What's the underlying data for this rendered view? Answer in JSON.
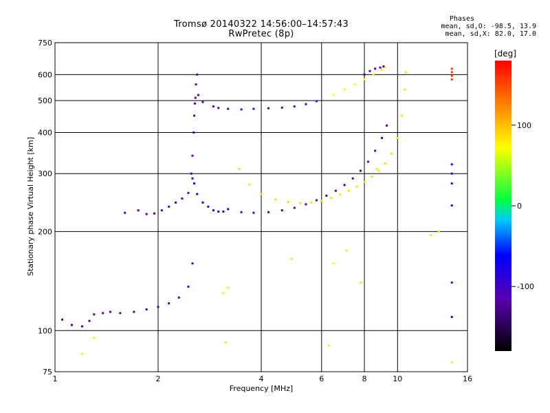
{
  "chart_data": {
    "type": "scatter",
    "title": "Tromsø 20140322 14:56:00–14:57:43",
    "subtitle": "RwPretec (8p)",
    "xlabel": "Frequency [MHz]",
    "ylabel": "Stationary phase Virtual Height [km]",
    "x_scale": "log",
    "y_scale": "log",
    "xlim": [
      1,
      16
    ],
    "ylim": [
      75,
      750
    ],
    "x_ticks": [
      1,
      2,
      4,
      6,
      8,
      10,
      16
    ],
    "x_tick_labels": [
      "1",
      "2",
      "4",
      "6",
      "8",
      "10",
      "16"
    ],
    "y_ticks": [
      75,
      100,
      200,
      300,
      400,
      500,
      600,
      750
    ],
    "y_tick_labels": [
      "75",
      "100",
      "200",
      "300",
      "400",
      "500",
      "600",
      "750"
    ],
    "grid": true,
    "colorbar": {
      "label": "[deg]",
      "range": [
        -180,
        180
      ],
      "ticks": [
        100,
        0,
        -100
      ],
      "tick_labels": [
        "100",
        "0",
        "-100"
      ]
    },
    "stats": {
      "heading": "Phases",
      "line_o": "mean, sd,O: -98.5, 13.9",
      "line_x": "mean, sd,X:  82.0, 17.0"
    },
    "series": [
      {
        "x": [
          1.05,
          1.12,
          1.2,
          1.26,
          1.3,
          1.38,
          1.45,
          1.55,
          1.7,
          1.85,
          2.0,
          2.15,
          2.3,
          2.45,
          2.52
        ],
        "y": [
          108,
          104,
          103,
          107,
          112,
          113,
          114,
          113,
          114,
          116,
          118,
          121,
          126,
          136,
          160
        ],
        "phase": -105
      },
      {
        "x": [
          1.6,
          1.75,
          1.85,
          1.95,
          2.05,
          2.15,
          2.25,
          2.35,
          2.45,
          2.52
        ],
        "y": [
          228,
          232,
          226,
          227,
          232,
          238,
          245,
          252,
          262,
          290
        ],
        "phase": -110
      },
      {
        "x": [
          2.5,
          2.52,
          2.54,
          2.55,
          2.56,
          2.57,
          2.58,
          2.6,
          2.62
        ],
        "y": [
          300,
          340,
          400,
          450,
          490,
          510,
          560,
          600,
          520
        ],
        "phase": -115
      },
      {
        "x": [
          2.55,
          2.6,
          2.7,
          2.8,
          2.9,
          3.0,
          3.1
        ],
        "y": [
          280,
          260,
          245,
          238,
          232,
          230,
          230
        ],
        "phase": -60
      },
      {
        "x": [
          2.7,
          2.9,
          3.0,
          3.2,
          3.5,
          3.8,
          4.2,
          4.6,
          5.0,
          5.4,
          5.8
        ],
        "y": [
          495,
          480,
          475,
          472,
          470,
          472,
          474,
          476,
          480,
          488,
          498
        ],
        "phase": -110
      },
      {
        "x": [
          3.2,
          3.5,
          3.8,
          4.2,
          4.6,
          5.0,
          5.4,
          5.8,
          6.2,
          6.6,
          7.0,
          7.4,
          7.8,
          8.2,
          8.6,
          9.0,
          9.3
        ],
        "y": [
          234,
          229,
          228,
          229,
          232,
          236,
          242,
          249,
          257,
          266,
          277,
          290,
          306,
          326,
          352,
          385,
          420
        ],
        "phase": -120
      },
      {
        "x": [
          3.45,
          3.7,
          4.0,
          4.4,
          4.8,
          5.2,
          5.6,
          6.0,
          6.4,
          6.8,
          7.2,
          7.6,
          8.0,
          8.4,
          8.8,
          9.2,
          9.6,
          10.0,
          10.3,
          10.5,
          10.6
        ],
        "y": [
          310,
          278,
          260,
          250,
          246,
          244,
          245,
          248,
          253,
          259,
          266,
          274,
          283,
          294,
          306,
          322,
          345,
          385,
          450,
          540,
          610
        ],
        "phase": 85
      },
      {
        "x": [
          6.5,
          7.0,
          7.5,
          8.0,
          8.5,
          9.0,
          9.2
        ],
        "y": [
          520,
          540,
          560,
          580,
          600,
          620,
          632
        ],
        "phase": 75
      },
      {
        "x": [
          8.0,
          8.3,
          8.6,
          8.9,
          9.1
        ],
        "y": [
          600,
          615,
          625,
          630,
          635
        ],
        "phase": -110
      },
      {
        "x": [
          14.4,
          14.4,
          14.4,
          14.4
        ],
        "y": [
          625,
          610,
          595,
          580
        ],
        "phase": 160
      },
      {
        "x": [
          14.4,
          14.4,
          14.4,
          14.4,
          14.4,
          14.4
        ],
        "y": [
          320,
          300,
          280,
          240,
          140,
          110
        ],
        "phase": -90
      },
      {
        "x": [
          1.2,
          1.3,
          3.1,
          3.2,
          3.15,
          4.9,
          6.3,
          6.5,
          7.1,
          7.8,
          8.7,
          12.5,
          13.2,
          14.4
        ],
        "y": [
          85,
          95,
          130,
          135,
          92,
          165,
          90,
          160,
          175,
          140,
          310,
          195,
          200,
          80
        ],
        "phase": 60
      }
    ]
  }
}
